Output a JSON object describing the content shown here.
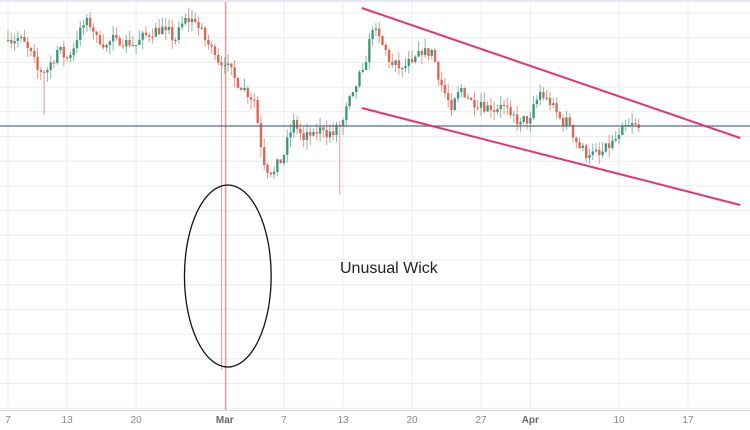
{
  "chart_data": {
    "type": "candlestick",
    "title": "",
    "xlabel": "",
    "ylabel": "",
    "x_ticks": [
      {
        "label": "7",
        "date": "02-07",
        "month": false
      },
      {
        "label": "13",
        "date": "02-13",
        "month": false
      },
      {
        "label": "20",
        "date": "02-20",
        "month": false
      },
      {
        "label": "Mar",
        "date": "03-01",
        "month": true
      },
      {
        "label": "7",
        "date": "03-07",
        "month": false
      },
      {
        "label": "13",
        "date": "03-13",
        "month": false
      },
      {
        "label": "20",
        "date": "03-20",
        "month": false
      },
      {
        "label": "27",
        "date": "03-27",
        "month": false
      },
      {
        "label": "Apr",
        "date": "04-01",
        "month": true
      },
      {
        "label": "10",
        "date": "04-10",
        "month": false
      },
      {
        "label": "17",
        "date": "04-17",
        "month": false
      }
    ],
    "start_date": "02-07",
    "daily_close": [
      360,
      362,
      352,
      330,
      330,
      350,
      342,
      360,
      382,
      365,
      355,
      362,
      360,
      355,
      365,
      372,
      370,
      360,
      382,
      378,
      360,
      345,
      335,
      322,
      312,
      300,
      235,
      228,
      245,
      280,
      260,
      268,
      270,
      265,
      280,
      308,
      330,
      370,
      355,
      335,
      332,
      338,
      345,
      350,
      315,
      290,
      312,
      300,
      298,
      290,
      295,
      285,
      278,
      282,
      308,
      295,
      282,
      275,
      252,
      245,
      245,
      252,
      265,
      275,
      272
    ],
    "special_lows": [
      {
        "date": "03-01",
        "low": 30
      },
      {
        "date": "03-13",
        "low": 205
      },
      {
        "date": "02-11",
        "low": 285
      }
    ],
    "grid": true,
    "up_color": "#2e8b6e",
    "down_color": "#e0533f",
    "horizontal_line": {
      "level": 274,
      "color": "#4f6d8f"
    },
    "vertical_line": {
      "date": "03-01",
      "color": "#d9534f"
    },
    "channel": {
      "color": "#e8336e",
      "upper": [
        {
          "date": "03-14.9",
          "price": 392
        },
        {
          "date": "04-22.3",
          "price": 262
        }
      ],
      "lower": [
        {
          "date": "03-14.9",
          "price": 292
        },
        {
          "date": "04-22.3",
          "price": 195
        }
      ]
    },
    "ellipse": {
      "date": "03-01",
      "price": 124,
      "half_width_days": 4.4,
      "half_height": 91,
      "color": "#111"
    },
    "annotation": {
      "text": "Unusual Wick"
    }
  }
}
